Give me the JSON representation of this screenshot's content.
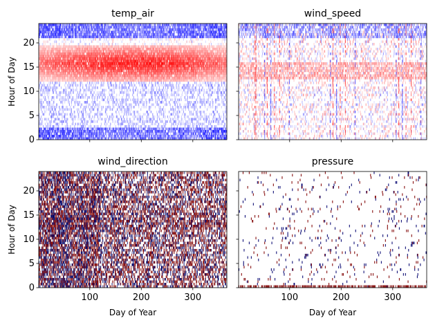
{
  "chart_data": [
    {
      "type": "heatmap",
      "title": "temp_air",
      "xlabel": "",
      "ylabel": "Hour of Day",
      "xlim": [
        1,
        366
      ],
      "ylim": [
        0,
        24
      ],
      "x_ticks": [
        100,
        200,
        300
      ],
      "y_ticks": [
        0,
        5,
        10,
        15,
        20
      ],
      "colormap": "bwr",
      "pattern": "diurnal: red (high) band roughly hours 12-19, strongest mid-year; blue (low) bands near hours 21-23 and 0-2; sparse light blue elsewhere"
    },
    {
      "type": "heatmap",
      "title": "wind_speed",
      "xlabel": "",
      "ylabel": "",
      "xlim": [
        1,
        366
      ],
      "ylim": [
        0,
        24
      ],
      "x_ticks": [
        100,
        200,
        300
      ],
      "y_ticks": [
        0,
        5,
        10,
        15,
        20
      ],
      "colormap": "bwr",
      "pattern": "mostly faint red/blue speckle; weak red band near hours 13-15; blue near hours 21-23; scattered vertical streaks"
    },
    {
      "type": "heatmap",
      "title": "wind_direction",
      "xlabel": "Day of Year",
      "ylabel": "Hour of Day",
      "xlim": [
        1,
        366
      ],
      "ylim": [
        0,
        24
      ],
      "x_ticks": [
        100,
        200,
        300
      ],
      "y_ticks": [
        0,
        5,
        10,
        15,
        20
      ],
      "colormap": "seismic",
      "pattern": "dense dark red and navy vertical streaks across all hours, darker in first months"
    },
    {
      "type": "heatmap",
      "title": "pressure",
      "xlabel": "Day of Year",
      "ylabel": "",
      "xlim": [
        1,
        366
      ],
      "ylim": [
        0,
        24
      ],
      "x_ticks": [
        100,
        200,
        300
      ],
      "y_ticks": [
        0,
        5,
        10,
        15,
        20
      ],
      "colormap": "seismic",
      "pattern": "nearly white with sparse scattered dark red and navy dots"
    }
  ]
}
